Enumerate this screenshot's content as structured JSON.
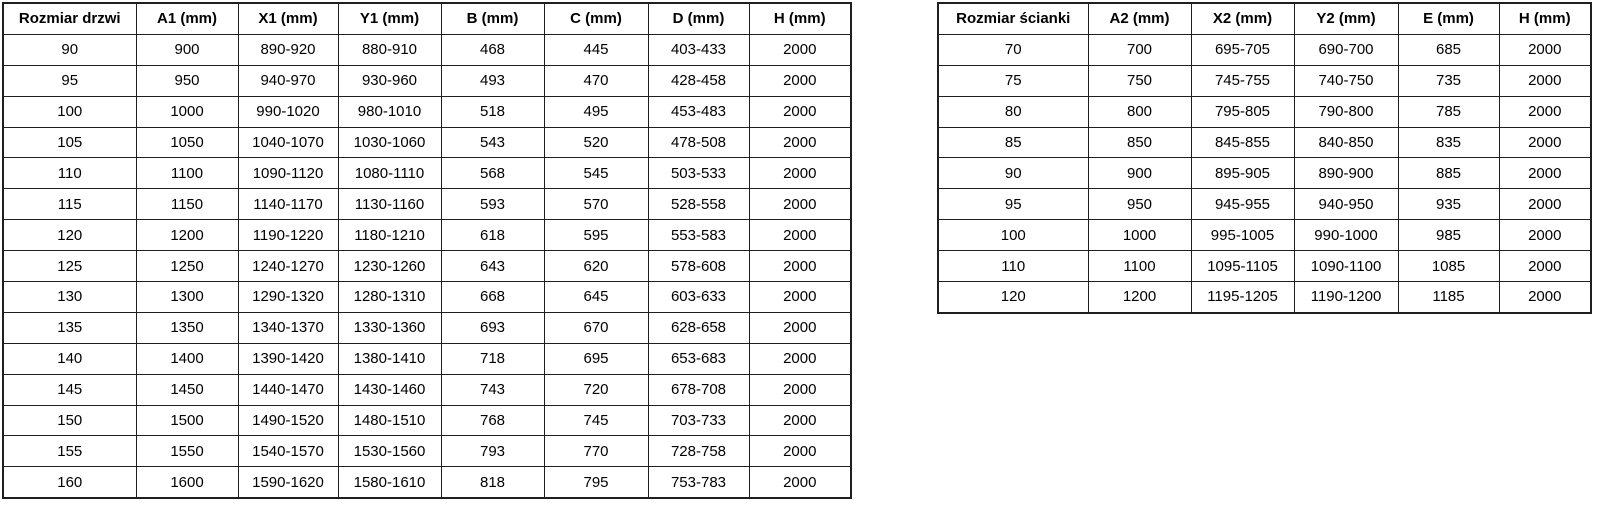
{
  "tables": [
    {
      "headers": [
        "Rozmiar drzwi",
        "A1 (mm)",
        "X1 (mm)",
        "Y1 (mm)",
        "B (mm)",
        "C (mm)",
        "D (mm)",
        "H (mm)"
      ],
      "rows": [
        [
          "90",
          "900",
          "890-920",
          "880-910",
          "468",
          "445",
          "403-433",
          "2000"
        ],
        [
          "95",
          "950",
          "940-970",
          "930-960",
          "493",
          "470",
          "428-458",
          "2000"
        ],
        [
          "100",
          "1000",
          "990-1020",
          "980-1010",
          "518",
          "495",
          "453-483",
          "2000"
        ],
        [
          "105",
          "1050",
          "1040-1070",
          "1030-1060",
          "543",
          "520",
          "478-508",
          "2000"
        ],
        [
          "110",
          "1100",
          "1090-1120",
          "1080-1110",
          "568",
          "545",
          "503-533",
          "2000"
        ],
        [
          "115",
          "1150",
          "1140-1170",
          "1130-1160",
          "593",
          "570",
          "528-558",
          "2000"
        ],
        [
          "120",
          "1200",
          "1190-1220",
          "1180-1210",
          "618",
          "595",
          "553-583",
          "2000"
        ],
        [
          "125",
          "1250",
          "1240-1270",
          "1230-1260",
          "643",
          "620",
          "578-608",
          "2000"
        ],
        [
          "130",
          "1300",
          "1290-1320",
          "1280-1310",
          "668",
          "645",
          "603-633",
          "2000"
        ],
        [
          "135",
          "1350",
          "1340-1370",
          "1330-1360",
          "693",
          "670",
          "628-658",
          "2000"
        ],
        [
          "140",
          "1400",
          "1390-1420",
          "1380-1410",
          "718",
          "695",
          "653-683",
          "2000"
        ],
        [
          "145",
          "1450",
          "1440-1470",
          "1430-1460",
          "743",
          "720",
          "678-708",
          "2000"
        ],
        [
          "150",
          "1500",
          "1490-1520",
          "1480-1510",
          "768",
          "745",
          "703-733",
          "2000"
        ],
        [
          "155",
          "1550",
          "1540-1570",
          "1530-1560",
          "793",
          "770",
          "728-758",
          "2000"
        ],
        [
          "160",
          "1600",
          "1590-1620",
          "1580-1610",
          "818",
          "795",
          "753-783",
          "2000"
        ]
      ]
    },
    {
      "headers": [
        "Rozmiar ścianki",
        "A2 (mm)",
        "X2 (mm)",
        "Y2 (mm)",
        "E (mm)",
        "H (mm)"
      ],
      "rows": [
        [
          "70",
          "700",
          "695-705",
          "690-700",
          "685",
          "2000"
        ],
        [
          "75",
          "750",
          "745-755",
          "740-750",
          "735",
          "2000"
        ],
        [
          "80",
          "800",
          "795-805",
          "790-800",
          "785",
          "2000"
        ],
        [
          "85",
          "850",
          "845-855",
          "840-850",
          "835",
          "2000"
        ],
        [
          "90",
          "900",
          "895-905",
          "890-900",
          "885",
          "2000"
        ],
        [
          "95",
          "950",
          "945-955",
          "940-950",
          "935",
          "2000"
        ],
        [
          "100",
          "1000",
          "995-1005",
          "990-1000",
          "985",
          "2000"
        ],
        [
          "110",
          "1100",
          "1095-1105",
          "1090-1100",
          "1085",
          "2000"
        ],
        [
          "120",
          "1200",
          "1195-1205",
          "1190-1200",
          "1185",
          "2000"
        ]
      ]
    }
  ]
}
